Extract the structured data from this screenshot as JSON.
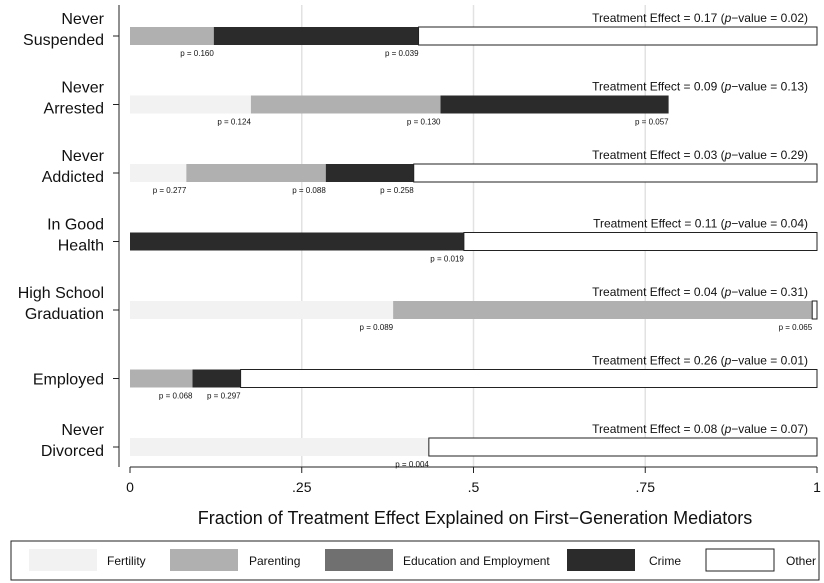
{
  "chart_data": {
    "type": "bar",
    "orientation": "horizontal",
    "stacked": true,
    "xlabel": "Fraction of Treatment Effect Explained on First−Generation Mediators",
    "xlim": [
      0,
      1
    ],
    "xticks": [
      0,
      0.25,
      0.5,
      0.75,
      1
    ],
    "xtick_labels": [
      "0",
      ".25",
      ".5",
      ".75",
      "1"
    ],
    "grid": "vertical lines at x ticks",
    "legend_position": "bottom",
    "components": [
      {
        "name": "Fertility",
        "color": "#f2f2f2"
      },
      {
        "name": "Parenting",
        "color": "#b0b0b0"
      },
      {
        "name": "Education and Employment",
        "color": "#707070"
      },
      {
        "name": "Crime",
        "color": "#2b2b2b"
      },
      {
        "name": "Other",
        "color": "#ffffff"
      }
    ],
    "rows": [
      {
        "label_lines": [
          "Never",
          "Suspended"
        ],
        "effect_text": "Treatment Effect = 0.17 (",
        "pvalue": "0.02",
        "segments": [
          {
            "component": "Parenting",
            "value": 0.122,
            "p": "p = 0.160"
          },
          {
            "component": "Crime",
            "value": 0.298,
            "p": "p = 0.039"
          },
          {
            "component": "Other",
            "value": 0.58,
            "p": ""
          }
        ]
      },
      {
        "label_lines": [
          "Never",
          "Arrested"
        ],
        "effect_text": "Treatment Effect = 0.09 (",
        "pvalue": "0.13",
        "segments": [
          {
            "component": "Fertility",
            "value": 0.176,
            "p": "p = 0.124"
          },
          {
            "component": "Parenting",
            "value": 0.276,
            "p": "p = 0.130"
          },
          {
            "component": "Crime",
            "value": 0.332,
            "p": "p = 0.057"
          }
        ]
      },
      {
        "label_lines": [
          "Never",
          "Addicted"
        ],
        "effect_text": "Treatment Effect = 0.03 (",
        "pvalue": "0.29",
        "segments": [
          {
            "component": "Fertility",
            "value": 0.082,
            "p": "p = 0.277"
          },
          {
            "component": "Parenting",
            "value": 0.203,
            "p": "p = 0.088"
          },
          {
            "component": "Crime",
            "value": 0.128,
            "p": "p = 0.258"
          },
          {
            "component": "Other",
            "value": 0.587,
            "p": ""
          }
        ]
      },
      {
        "label_lines": [
          "In Good",
          "Health"
        ],
        "effect_text": "Treatment Effect = 0.11 (",
        "pvalue": "0.04",
        "segments": [
          {
            "component": "Crime",
            "value": 0.486,
            "p": "p = 0.019"
          },
          {
            "component": "Other",
            "value": 0.514,
            "p": ""
          }
        ]
      },
      {
        "label_lines": [
          "High School",
          "Graduation"
        ],
        "effect_text": "Treatment Effect = 0.04 (",
        "pvalue": "0.31",
        "segments": [
          {
            "component": "Fertility",
            "value": 0.383,
            "p": "p = 0.089"
          },
          {
            "component": "Parenting",
            "value": 0.61,
            "p": "p = 0.065"
          },
          {
            "component": "Other",
            "value": 0.007,
            "p": ""
          }
        ]
      },
      {
        "label_lines": [
          "Employed"
        ],
        "effect_text": "Treatment Effect = 0.26 (",
        "pvalue": "0.01",
        "segments": [
          {
            "component": "Parenting",
            "value": 0.091,
            "p": "p = 0.068"
          },
          {
            "component": "Crime",
            "value": 0.07,
            "p": "p = 0.297"
          },
          {
            "component": "Other",
            "value": 0.839,
            "p": ""
          }
        ]
      },
      {
        "label_lines": [
          "Never",
          "Divorced"
        ],
        "effect_text": "Treatment Effect = 0.08 (",
        "pvalue": "0.07",
        "segments": [
          {
            "component": "Fertility",
            "value": 0.435,
            "p": "p = 0.004"
          },
          {
            "component": "Other",
            "value": 0.565,
            "p": ""
          }
        ]
      }
    ]
  }
}
